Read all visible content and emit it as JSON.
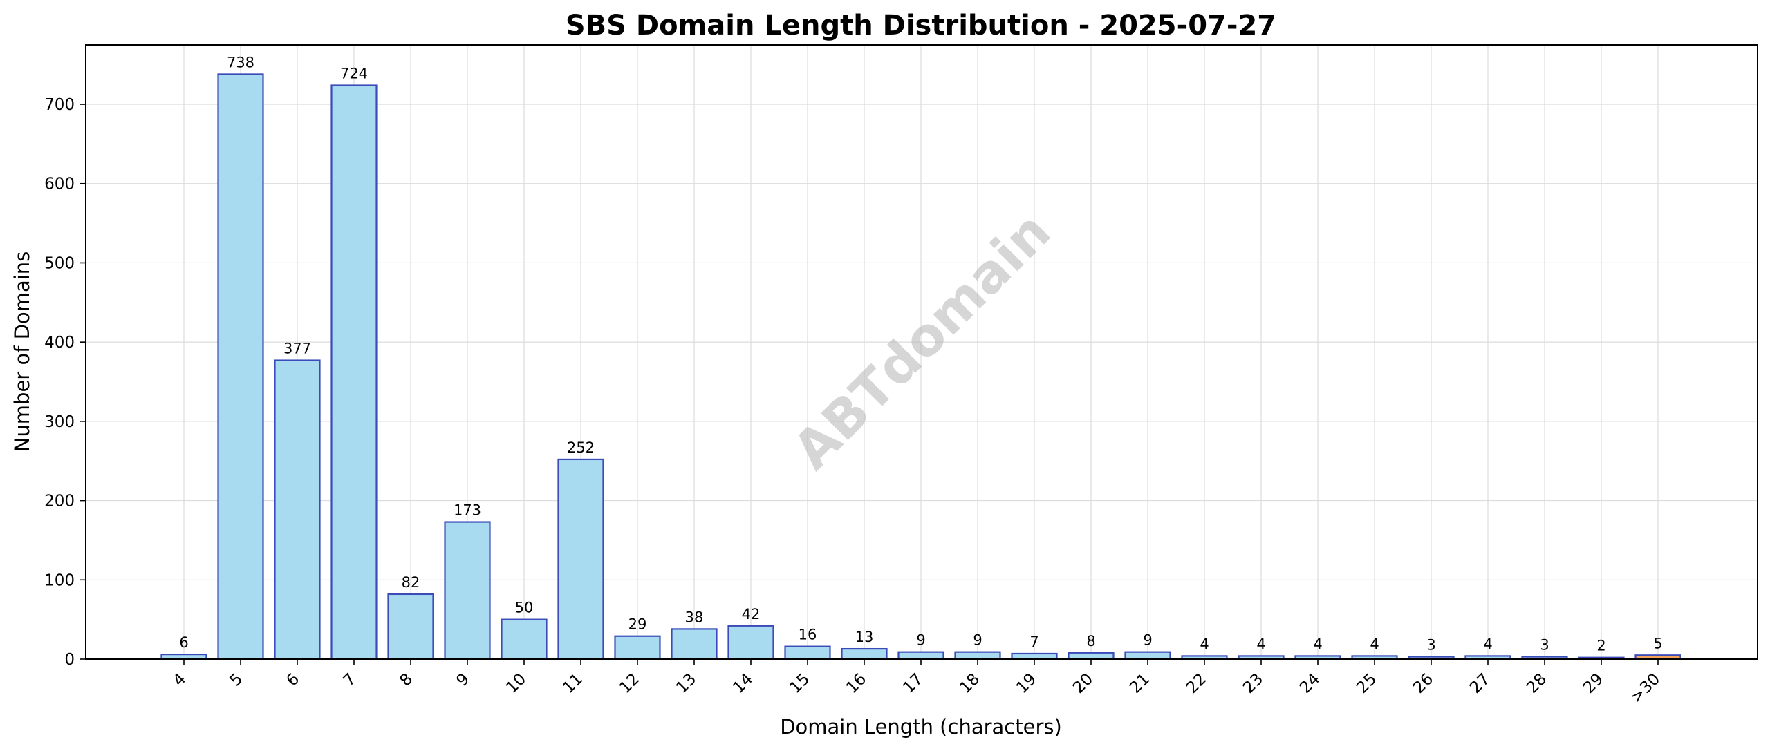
{
  "chart_data": {
    "type": "bar",
    "title": "SBS Domain Length Distribution - 2025-07-27",
    "xlabel": "Domain Length (characters)",
    "ylabel": "Number of Domains",
    "categories": [
      "4",
      "5",
      "6",
      "7",
      "8",
      "9",
      "10",
      "11",
      "12",
      "13",
      "14",
      "15",
      "16",
      "17",
      "18",
      "19",
      "20",
      "21",
      "22",
      "23",
      "24",
      "25",
      "26",
      "27",
      "28",
      "29",
      ">30"
    ],
    "values": [
      6,
      738,
      377,
      724,
      82,
      173,
      50,
      252,
      29,
      38,
      42,
      16,
      13,
      9,
      9,
      7,
      8,
      9,
      4,
      4,
      4,
      4,
      3,
      4,
      3,
      2,
      5
    ],
    "ylim": [
      0,
      775
    ],
    "yticks": [
      0,
      100,
      200,
      300,
      400,
      500,
      600,
      700
    ],
    "grid": true,
    "bar_color": "#a8dbef",
    "bar_edge_color": "#3b4cb8",
    "highlight_color": "#f5a35a",
    "highlight_category": ">30",
    "watermark": "ABTdomain"
  }
}
